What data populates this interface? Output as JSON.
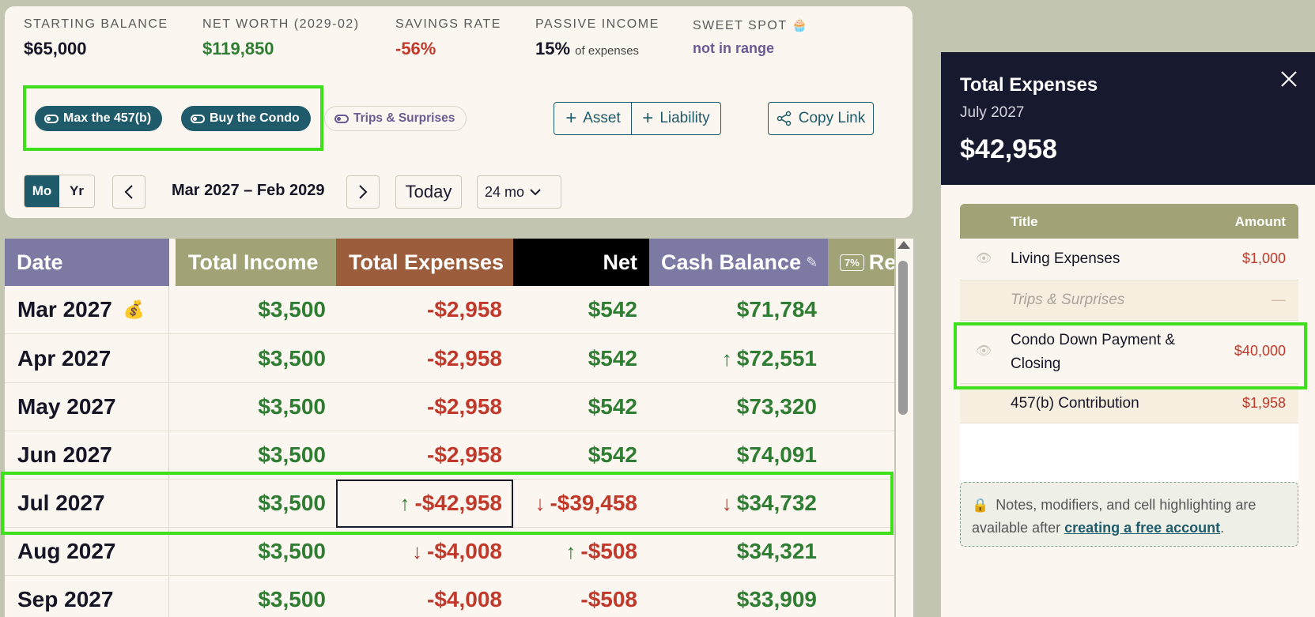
{
  "stats": {
    "starting_balance": {
      "label": "STARTING BALANCE",
      "value": "$65,000"
    },
    "net_worth": {
      "label": "NET WORTH (2029-02)",
      "value": "$119,850"
    },
    "savings_rate": {
      "label": "SAVINGS RATE",
      "value": "-56%"
    },
    "passive_income": {
      "label": "PASSIVE INCOME",
      "value": "15%",
      "suffix": "of expenses"
    },
    "sweet_spot": {
      "label": "SWEET SPOT",
      "value": "not in range",
      "icon": "🧁"
    }
  },
  "scenarios": [
    {
      "label": "Max the 457(b)",
      "on": true
    },
    {
      "label": "Buy the Condo",
      "on": true
    },
    {
      "label": "Trips & Surprises",
      "on": false
    }
  ],
  "actions": {
    "asset": "Asset",
    "liability": "Liability",
    "copy_link": "Copy Link"
  },
  "nav": {
    "mo": "Mo",
    "yr": "Yr",
    "range": "Mar 2027 – Feb 2029",
    "today": "Today",
    "window": "24 mo"
  },
  "table": {
    "headers": {
      "date": "Date",
      "income": "Total Income",
      "expenses": "Total Expenses",
      "net": "Net",
      "cash": "Cash Balance",
      "rate": "7%",
      "next": "Re"
    },
    "rows": [
      {
        "date": "Mar 2027",
        "income": "$3,500",
        "expenses": "-$2,958",
        "net": "$542",
        "cash": "$71,784"
      },
      {
        "date": "Apr 2027",
        "income": "$3,500",
        "expenses": "-$2,958",
        "net": "$542",
        "cash": "$72,551"
      },
      {
        "date": "May 2027",
        "income": "$3,500",
        "expenses": "-$2,958",
        "net": "$542",
        "cash": "$73,320"
      },
      {
        "date": "Jun 2027",
        "income": "$3,500",
        "expenses": "-$2,958",
        "net": "$542",
        "cash": "$74,091"
      },
      {
        "date": "Jul 2027",
        "income": "$3,500",
        "expenses": "-$42,958",
        "net": "-$39,458",
        "cash": "$34,732"
      },
      {
        "date": "Aug 2027",
        "income": "$3,500",
        "expenses": "-$4,008",
        "net": "-$508",
        "cash": "$34,321"
      },
      {
        "date": "Sep 2027",
        "income": "$3,500",
        "expenses": "-$4,008",
        "net": "-$508",
        "cash": "$33,909"
      }
    ]
  },
  "side_panel": {
    "title": "Total Expenses",
    "subtitle": "July 2027",
    "amount": "$42,958",
    "columns": {
      "title": "Title",
      "amount": "Amount"
    },
    "items": [
      {
        "title": "Living Expenses",
        "amount": "$1,000"
      },
      {
        "title": "Trips & Surprises",
        "amount": "—"
      },
      {
        "title": "Condo Down Payment & Closing",
        "amount": "$40,000"
      },
      {
        "title": "457(b) Contribution",
        "amount": "$1,958"
      }
    ],
    "note_text": "Notes, modifiers, and cell highlighting are available after",
    "note_link": "creating a free account",
    "note_end": "."
  },
  "colors": {
    "date_header": "#7c79a3",
    "income_header": "#a1a276",
    "expenses_header": "#9c5d3c",
    "net_header": "#000000",
    "cash_header": "#7c79a3",
    "accent": "#1f5b6b",
    "highlight": "#3de01a"
  }
}
